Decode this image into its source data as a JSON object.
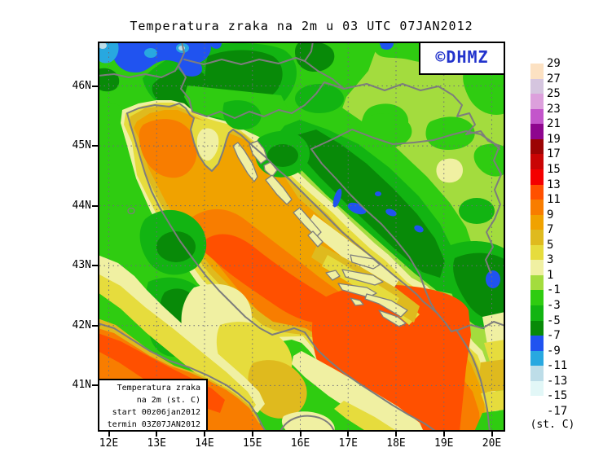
{
  "title": "Temperatura zraka na 2m u 03 UTC 07JAN2012",
  "logo": "©DHMZ",
  "legend_box": {
    "line1": "Temperatura zraka",
    "line2": "na 2m (st. C)",
    "line3": "start 00z06jan2012",
    "line4": "termin 03Z07JAN2012"
  },
  "axes": {
    "x_ticks": [
      "12E",
      "13E",
      "14E",
      "15E",
      "16E",
      "17E",
      "18E",
      "19E",
      "20E"
    ],
    "y_ticks": [
      "46N",
      "45N",
      "44N",
      "43N",
      "42N",
      "41N"
    ]
  },
  "colorbar": {
    "unit": "(st. C)",
    "levels": [
      29,
      27,
      25,
      23,
      21,
      19,
      17,
      15,
      13,
      11,
      9,
      7,
      5,
      3,
      1,
      -1,
      -3,
      -5,
      -7,
      -9,
      -11,
      -13,
      -15,
      -17
    ],
    "colors": [
      "#fce1c2",
      "#d5c5df",
      "#dca0dc",
      "#c355cb",
      "#8e068e",
      "#9c0404",
      "#c90404",
      "#f40000",
      "#ff5000",
      "#f87d00",
      "#f0a200",
      "#dfba1e",
      "#e6dc3d",
      "#f0f0a2",
      "#a3dc3e",
      "#2fcc11",
      "#12b412",
      "#088a08",
      "#2053f0",
      "#28a8e0",
      "#bddde8",
      "#e2f7f7",
      "#ffffff"
    ]
  }
}
